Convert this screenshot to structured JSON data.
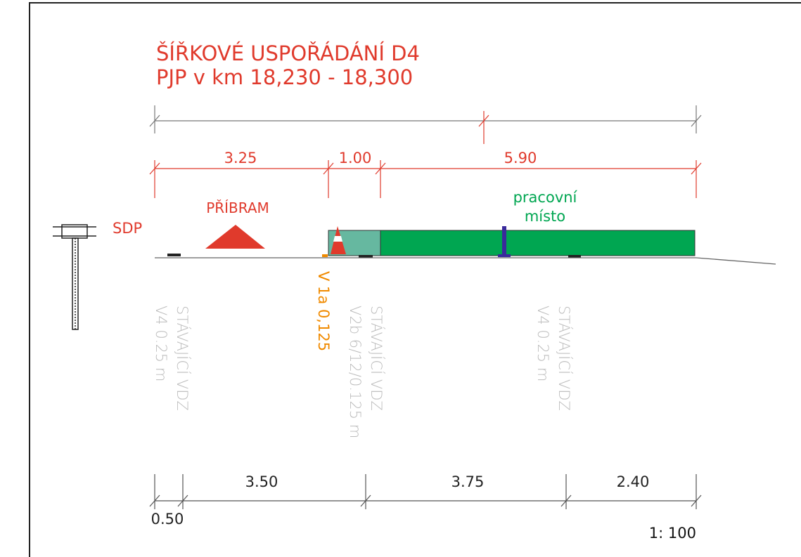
{
  "title": {
    "line1": "ŠÍŘKOVÉ USPOŘÁDÁNÍ D4",
    "line2": "PJP v km 18,230 - 18,300"
  },
  "top_dimensions": [
    "3.25",
    "1.00",
    "5.90"
  ],
  "labels": {
    "direction": "PŘÍBRAM",
    "sdp": "SDP",
    "work_line1": "pracovní",
    "work_line2": "místo",
    "marking": "V 1a 0,125"
  },
  "existing_markings": [
    {
      "line1": "STÁVAJÍCÍ VDZ",
      "line2": "V4 0.25 m"
    },
    {
      "line1": "STÁVAJÍCÍ VDZ",
      "line2": "V2b 6/12/0.125 m"
    },
    {
      "line1": "STÁVAJÍCÍ VDZ",
      "line2": "V4 0.25 m"
    }
  ],
  "bottom_dimensions": [
    "0.50",
    "3.50",
    "3.75",
    "2.40"
  ],
  "scale": "1: 100"
}
